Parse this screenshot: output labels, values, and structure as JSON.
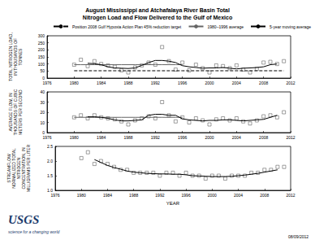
{
  "chart_data": [
    {
      "type": "scatter",
      "title": "August Mississippi and Atchafalaya River Basin Total Nitrogen Load and Flow Delivered to the Gulf of Mexico",
      "y_label": "TOTAL NITROGEN LOAD, IN THOUSANDS OF TONNES",
      "x": [
        1980,
        1981,
        1982,
        1983,
        1984,
        1985,
        1986,
        1987,
        1988,
        1989,
        1990,
        1991,
        1992,
        1993,
        1994,
        1995,
        1996,
        1997,
        1998,
        1999,
        2000,
        2001,
        2002,
        2003,
        2004,
        2005,
        2006,
        2007,
        2008,
        2009,
        2010,
        2011
      ],
      "xlim": [
        1976,
        2012
      ],
      "xticks": [
        1976,
        1980,
        1984,
        1988,
        1992,
        1996,
        2000,
        2004,
        2008,
        2012
      ],
      "ylim": [
        0,
        300
      ],
      "yticks": [
        0,
        50,
        100,
        150,
        200,
        250,
        300
      ],
      "grid": false,
      "legend": "top-left",
      "series": [
        {
          "type": "scatter",
          "marker": "square",
          "color": "#555555",
          "values": [
            95,
            130,
            85,
            120,
            100,
            90,
            80,
            55,
            40,
            75,
            90,
            110,
            95,
            220,
            120,
            60,
            110,
            55,
            95,
            70,
            40,
            90,
            85,
            70,
            90,
            60,
            40,
            65,
            110,
            115,
            100,
            120
          ]
        },
        {
          "name": "Position 2008 Gulf Hypoxia Action Plan 45% reduction target",
          "type": "line",
          "line_style": "dashed",
          "color": "#000000",
          "values": [
            52,
            52,
            52,
            52,
            52,
            52,
            52,
            52,
            52,
            52,
            52,
            52,
            52,
            52,
            52,
            52,
            52,
            52,
            52,
            52,
            52,
            52,
            52,
            52,
            52,
            52,
            52,
            52,
            52,
            52,
            52,
            52
          ]
        },
        {
          "name": "1980–1996 average",
          "type": "line",
          "line_style": "solid",
          "color": "#666666",
          "values": [
            95,
            95,
            95,
            95,
            95,
            95,
            95,
            95,
            95,
            95,
            95,
            95,
            95,
            95,
            95,
            95,
            95,
            null,
            null,
            null,
            null,
            null,
            null,
            null,
            null,
            null,
            null,
            null,
            null,
            null,
            null,
            null
          ]
        },
        {
          "name": "5-year moving average",
          "type": "line",
          "line_style": "solid",
          "color": "#000000",
          "values": [
            null,
            null,
            105,
            102,
            95,
            80,
            72,
            70,
            68,
            72,
            90,
            110,
            125,
            125,
            120,
            110,
            88,
            80,
            75,
            70,
            72,
            72,
            75,
            70,
            65,
            70,
            72,
            75,
            80,
            95,
            100,
            null
          ]
        }
      ]
    },
    {
      "type": "scatter",
      "y_label": "AVERAGE FLOW, IN THOUSANDS OF CUBIC METERS PER SECOND",
      "x": [
        1980,
        1981,
        1982,
        1983,
        1984,
        1985,
        1986,
        1987,
        1988,
        1989,
        1990,
        1991,
        1992,
        1993,
        1994,
        1995,
        1996,
        1997,
        1998,
        1999,
        2000,
        2001,
        2002,
        2003,
        2004,
        2005,
        2006,
        2007,
        2008,
        2009,
        2010,
        2011
      ],
      "xlim": [
        1976,
        2012
      ],
      "xticks": [
        1976,
        1980,
        1984,
        1988,
        1992,
        1996,
        2000,
        2004,
        2008,
        2012
      ],
      "ylim": [
        0,
        40
      ],
      "yticks": [
        0,
        10,
        20,
        30,
        40
      ],
      "grid": false,
      "series": [
        {
          "type": "scatter",
          "marker": "square",
          "color": "#555555",
          "values": [
            15,
            17,
            14,
            17,
            15,
            14,
            13,
            11,
            8,
            12,
            14,
            16,
            14,
            30,
            17,
            11,
            15,
            10,
            14,
            12,
            8,
            13,
            14,
            12,
            14,
            11,
            9,
            12,
            16,
            17,
            15,
            20
          ]
        },
        {
          "type": "line",
          "line_style": "solid",
          "color": "#666666",
          "values": [
            15,
            15,
            15,
            15,
            15,
            15,
            15,
            15,
            15,
            15,
            15,
            15,
            15,
            15,
            15,
            15,
            15,
            null,
            null,
            null,
            null,
            null,
            null,
            null,
            null,
            null,
            null,
            null,
            null,
            null,
            null,
            null
          ]
        },
        {
          "type": "line",
          "line_style": "solid",
          "color": "#000000",
          "values": [
            null,
            null,
            15.5,
            15.5,
            15,
            14,
            12.5,
            11.5,
            11.5,
            12,
            12.5,
            17,
            18,
            18,
            17,
            17,
            13.5,
            12.5,
            12,
            11.5,
            12,
            12,
            12.5,
            12.5,
            12,
            11.5,
            12,
            12.5,
            13,
            15,
            17,
            null
          ]
        }
      ]
    },
    {
      "type": "scatter",
      "y_label": "STREAMFLOW NORMALIZED TOTAL NITROGEN CONCENTRATION, IN MILLIGRAMS PER LITER",
      "x_label": "YEAR",
      "x": [
        1980,
        1981,
        1982,
        1983,
        1984,
        1985,
        1986,
        1987,
        1988,
        1989,
        1990,
        1991,
        1992,
        1993,
        1994,
        1995,
        1996,
        1997,
        1998,
        1999,
        2000,
        2001,
        2002,
        2003,
        2004,
        2005,
        2006,
        2007,
        2008,
        2009,
        2010,
        2011
      ],
      "xlim": [
        1976,
        2012
      ],
      "xticks": [
        1976,
        1980,
        1984,
        1988,
        1992,
        1996,
        2000,
        2004,
        2008,
        2012
      ],
      "ylim": [
        1,
        2.5
      ],
      "yticks": [
        {
          "value": 1,
          "label": "1.0"
        },
        1.5,
        {
          "value": 2,
          "label": "2.0"
        },
        2.5
      ],
      "grid": false,
      "series": [
        {
          "type": "scatter",
          "marker": "square",
          "color": "#555555",
          "values": [
            2.1,
            2.3,
            1.9,
            2.0,
            1.9,
            1.8,
            1.7,
            1.7,
            1.6,
            1.6,
            1.6,
            1.6,
            1.5,
            1.6,
            1.6,
            1.5,
            1.6,
            1.5,
            1.5,
            1.4,
            1.5,
            1.5,
            1.4,
            1.5,
            1.5,
            1.5,
            1.6,
            1.6,
            1.7,
            1.7,
            1.8,
            1.8
          ]
        },
        {
          "type": "line",
          "line_style": "solid",
          "color": "#000000",
          "values": [
            null,
            null,
            2.05,
            1.95,
            1.85,
            1.78,
            1.72,
            1.66,
            1.62,
            1.6,
            1.58,
            1.57,
            1.56,
            1.56,
            1.55,
            1.55,
            1.53,
            1.5,
            1.49,
            1.48,
            1.47,
            1.47,
            1.47,
            1.48,
            1.5,
            1.52,
            1.55,
            1.58,
            1.62,
            1.66,
            1.7,
            null
          ]
        }
      ]
    }
  ],
  "footer": {
    "logo": "USGS",
    "tagline": "science for a changing world",
    "date": "08/09/2012"
  }
}
